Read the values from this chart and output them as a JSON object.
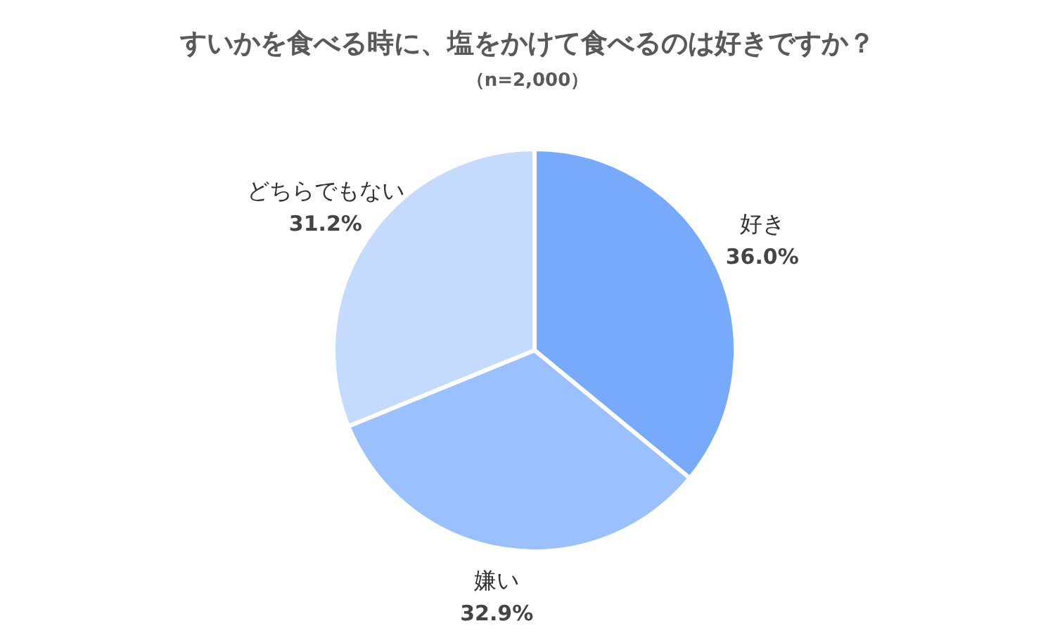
{
  "chart_data": {
    "type": "pie",
    "title": "すいかを食べる時に、塩をかけて食べるのは好きですか？",
    "subtitle": "（n=2,000）",
    "categories": [
      "好き",
      "嫌い",
      "どちらでもない"
    ],
    "values": [
      36.0,
      32.9,
      31.2
    ],
    "value_labels": [
      "36.0%",
      "32.9%",
      "31.2%"
    ],
    "colors": [
      "#78aafc",
      "#9ac0ff",
      "#c4daff"
    ],
    "legend": false
  }
}
